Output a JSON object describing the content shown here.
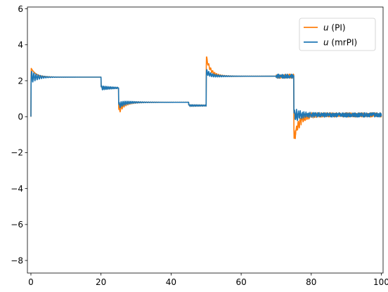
{
  "chart_data": {
    "type": "line",
    "title": "",
    "xlabel": "",
    "ylabel": "",
    "xlim": [
      -1,
      100.5
    ],
    "ylim": [
      -8.7,
      6.1
    ],
    "xticks": [
      0,
      20,
      40,
      60,
      80,
      100
    ],
    "yticks": [
      -8,
      -6,
      -4,
      -2,
      0,
      2,
      4,
      6
    ],
    "ytick_labels": [
      "−8",
      "−6",
      "−4",
      "−2",
      "0",
      "2",
      "4",
      "6"
    ],
    "grid": false,
    "legend_position": "top-right",
    "legend": [
      {
        "var": "u",
        "suffix": " (PI)"
      },
      {
        "var": "u",
        "suffix": " (mrPI)"
      }
    ],
    "series": [
      {
        "name": "u (PI)",
        "color": "#ff7f0e",
        "segments": [
          {
            "t0": 0,
            "t1": 20,
            "v0": 0,
            "vf": 2.2,
            "peak": 2.7,
            "tau": 1.4,
            "ring": 0,
            "amp": 0,
            "freq": 0,
            "noise": 0
          },
          {
            "t0": 20,
            "t1": 25,
            "v0": 2.2,
            "vf": 1.6,
            "peak": 1.6,
            "tau": 1.0,
            "ring": 0.25,
            "amp": 0.1,
            "freq": 2.0,
            "noise": 0
          },
          {
            "t0": 25,
            "t1": 45,
            "v0": 1.6,
            "vf": 0.8,
            "peak": 0.3,
            "tau": 1.2,
            "ring": 0.3,
            "amp": 0.2,
            "freq": 1.8,
            "noise": 0
          },
          {
            "t0": 45,
            "t1": 50,
            "v0": 0.8,
            "vf": 0.62,
            "peak": 0.62,
            "tau": 0.8,
            "ring": 0.1,
            "amp": 0.05,
            "freq": 2.0,
            "noise": 0
          },
          {
            "t0": 50,
            "t1": 70,
            "v0": 0.62,
            "vf": 2.25,
            "peak": 3.3,
            "tau": 1.2,
            "ring": 0.25,
            "amp": 0.12,
            "freq": 1.8,
            "noise": 0
          },
          {
            "t0": 70,
            "t1": 75,
            "v0": 2.25,
            "vf": 2.25,
            "peak": 2.25,
            "tau": 1.0,
            "ring": 0,
            "amp": 0,
            "freq": 4.0,
            "noise": 0.12
          },
          {
            "t0": 75,
            "t1": 100,
            "v0": 2.25,
            "vf": 0.1,
            "peak": -1.25,
            "tau": 1.4,
            "ring": 0.3,
            "amp": 0.25,
            "freq": 1.8,
            "noise": 0.12
          }
        ]
      },
      {
        "name": "u (mrPI)",
        "color": "#1f77b4",
        "segments": [
          {
            "t0": 0,
            "t1": 20,
            "v0": 0,
            "vf": 2.2,
            "peak": 2.2,
            "tau": 1.4,
            "ring": 0.5,
            "amp": 0.35,
            "freq": 1.6,
            "noise": 0
          },
          {
            "t0": 20,
            "t1": 25,
            "v0": 2.2,
            "vf": 1.6,
            "peak": 1.6,
            "tau": 1.0,
            "ring": 0.25,
            "amp": 0.12,
            "freq": 2.0,
            "noise": 0
          },
          {
            "t0": 25,
            "t1": 45,
            "v0": 1.6,
            "vf": 0.8,
            "peak": 0.6,
            "tau": 1.2,
            "ring": 0.3,
            "amp": 0.18,
            "freq": 1.8,
            "noise": 0
          },
          {
            "t0": 45,
            "t1": 50,
            "v0": 0.8,
            "vf": 0.62,
            "peak": 0.62,
            "tau": 0.8,
            "ring": 0.1,
            "amp": 0.05,
            "freq": 2.0,
            "noise": 0
          },
          {
            "t0": 50,
            "t1": 70,
            "v0": 0.62,
            "vf": 2.25,
            "peak": 2.5,
            "tau": 1.2,
            "ring": 0.3,
            "amp": 0.15,
            "freq": 1.8,
            "noise": 0
          },
          {
            "t0": 70,
            "t1": 75,
            "v0": 2.25,
            "vf": 2.25,
            "peak": 2.25,
            "tau": 1.0,
            "ring": 0,
            "amp": 0,
            "freq": 4.0,
            "noise": 0.12
          },
          {
            "t0": 75,
            "t1": 100,
            "v0": 2.25,
            "vf": 0.1,
            "peak": 0.1,
            "tau": 1.4,
            "ring": 0.45,
            "amp": 0.35,
            "freq": 1.8,
            "noise": 0.12
          }
        ]
      }
    ]
  }
}
